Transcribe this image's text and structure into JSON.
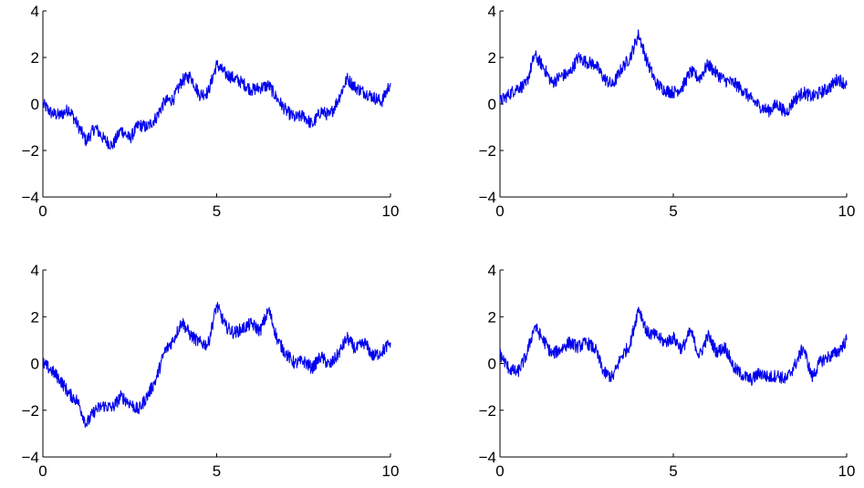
{
  "figure": {
    "line_color": "#0000ee",
    "axis_color": "#000000",
    "background": "#ffffff"
  },
  "chart_data": [
    {
      "type": "line",
      "panel": "top-left",
      "title": "",
      "xlabel": "",
      "ylabel": "",
      "xlim": [
        0,
        10
      ],
      "ylim": [
        -4,
        4
      ],
      "xticks": [
        0,
        5,
        10
      ],
      "xtick_labels": [
        "0",
        "5",
        "10"
      ],
      "yticks": [
        -4,
        -2,
        0,
        2,
        4
      ],
      "ytick_labels": [
        "−4",
        "−2",
        "0",
        "2",
        "4"
      ],
      "grid": false,
      "legend": "none",
      "series": [
        {
          "x": [
            0,
            0.25,
            0.5,
            0.75,
            1,
            1.25,
            1.5,
            1.75,
            2,
            2.25,
            2.5,
            2.75,
            3,
            3.25,
            3.5,
            3.75,
            4,
            4.25,
            4.5,
            4.75,
            5,
            5.25,
            5.5,
            5.75,
            6,
            6.25,
            6.5,
            6.75,
            7,
            7.25,
            7.5,
            7.75,
            8,
            8.25,
            8.5,
            8.75,
            9,
            9.25,
            9.5,
            9.75,
            10
          ],
          "y": [
            0.0,
            -0.4,
            -0.5,
            -0.2,
            -0.9,
            -1.6,
            -1.0,
            -1.5,
            -1.8,
            -1.1,
            -1.5,
            -0.9,
            -1.0,
            -0.6,
            0.1,
            0.2,
            1.0,
            1.2,
            0.4,
            0.5,
            1.7,
            1.3,
            1.1,
            0.9,
            0.6,
            0.7,
            0.8,
            0.2,
            -0.3,
            -0.6,
            -0.5,
            -0.9,
            -0.3,
            -0.5,
            0.2,
            1.1,
            0.7,
            0.5,
            0.3,
            0.1,
            0.9
          ]
        }
      ]
    },
    {
      "type": "line",
      "panel": "top-right",
      "title": "",
      "xlabel": "",
      "ylabel": "",
      "xlim": [
        0,
        10
      ],
      "ylim": [
        -4,
        4
      ],
      "xticks": [
        0,
        5,
        10
      ],
      "xtick_labels": [
        "0",
        "5",
        "10"
      ],
      "yticks": [
        -4,
        -2,
        0,
        2,
        4
      ],
      "ytick_labels": [
        "−4",
        "−2",
        "0",
        "2",
        "4"
      ],
      "grid": false,
      "legend": "none",
      "series": [
        {
          "x": [
            0,
            0.25,
            0.5,
            0.75,
            1,
            1.25,
            1.5,
            1.75,
            2,
            2.25,
            2.5,
            2.75,
            3,
            3.25,
            3.5,
            3.75,
            4,
            4.25,
            4.5,
            4.75,
            5,
            5.25,
            5.5,
            5.75,
            6,
            6.25,
            6.5,
            6.75,
            7,
            7.25,
            7.5,
            7.75,
            8,
            8.25,
            8.5,
            8.75,
            9,
            9.25,
            9.5,
            9.75,
            10
          ],
          "y": [
            0.1,
            0.4,
            0.7,
            0.8,
            2.1,
            1.6,
            0.9,
            1.2,
            1.3,
            2.0,
            1.8,
            1.7,
            1.1,
            0.8,
            1.5,
            2.0,
            3.0,
            1.8,
            0.9,
            0.6,
            0.5,
            0.7,
            1.4,
            1.1,
            1.7,
            1.3,
            1.0,
            0.9,
            0.6,
            0.2,
            -0.1,
            -0.3,
            0.0,
            -0.4,
            0.2,
            0.5,
            0.3,
            0.5,
            0.7,
            1.1,
            0.8
          ]
        }
      ]
    },
    {
      "type": "line",
      "panel": "bottom-left",
      "title": "",
      "xlabel": "",
      "ylabel": "",
      "xlim": [
        0,
        10
      ],
      "ylim": [
        -4,
        4
      ],
      "xticks": [
        0,
        5,
        10
      ],
      "xtick_labels": [
        "0",
        "5",
        "10"
      ],
      "yticks": [
        -4,
        -2,
        0,
        2,
        4
      ],
      "ytick_labels": [
        "−4",
        "−2",
        "0",
        "2",
        "4"
      ],
      "grid": false,
      "legend": "none",
      "series": [
        {
          "x": [
            0,
            0.25,
            0.5,
            0.75,
            1,
            1.25,
            1.5,
            1.75,
            2,
            2.25,
            2.5,
            2.75,
            3,
            3.25,
            3.5,
            3.75,
            4,
            4.25,
            4.5,
            4.75,
            5,
            5.25,
            5.5,
            5.75,
            6,
            6.25,
            6.5,
            6.75,
            7,
            7.25,
            7.5,
            7.75,
            8,
            8.25,
            8.5,
            8.75,
            9,
            9.25,
            9.5,
            9.75,
            10
          ],
          "y": [
            0.0,
            -0.3,
            -0.7,
            -1.3,
            -1.6,
            -2.6,
            -2.0,
            -1.8,
            -1.9,
            -1.4,
            -1.7,
            -2.0,
            -1.4,
            -0.7,
            0.5,
            1.0,
            1.8,
            1.2,
            0.9,
            0.8,
            2.5,
            1.6,
            1.3,
            1.5,
            1.7,
            1.4,
            2.3,
            1.0,
            0.4,
            0.0,
            0.1,
            -0.2,
            0.3,
            -0.1,
            0.4,
            1.1,
            0.6,
            0.9,
            0.3,
            0.5,
            0.9
          ]
        }
      ]
    },
    {
      "type": "line",
      "panel": "bottom-right",
      "title": "",
      "xlabel": "",
      "ylabel": "",
      "xlim": [
        0,
        10
      ],
      "ylim": [
        -4,
        4
      ],
      "xticks": [
        0,
        5,
        10
      ],
      "xtick_labels": [
        "0",
        "5",
        "10"
      ],
      "yticks": [
        -4,
        -2,
        0,
        2,
        4
      ],
      "ytick_labels": [
        "−4",
        "−2",
        "0",
        "2",
        "4"
      ],
      "grid": false,
      "legend": "none",
      "series": [
        {
          "x": [
            0,
            0.25,
            0.5,
            0.75,
            1,
            1.25,
            1.5,
            1.75,
            2,
            2.25,
            2.5,
            2.75,
            3,
            3.25,
            3.5,
            3.75,
            4,
            4.25,
            4.5,
            4.75,
            5,
            5.25,
            5.5,
            5.75,
            6,
            6.25,
            6.5,
            6.75,
            7,
            7.25,
            7.5,
            7.75,
            8,
            8.25,
            8.5,
            8.75,
            9,
            9.25,
            9.5,
            9.75,
            10
          ],
          "y": [
            0.4,
            -0.2,
            -0.4,
            0.3,
            1.6,
            1.0,
            0.4,
            0.6,
            0.9,
            0.7,
            0.9,
            0.6,
            -0.4,
            -0.6,
            0.3,
            0.8,
            2.4,
            1.3,
            1.2,
            0.9,
            1.1,
            0.6,
            1.4,
            0.3,
            1.2,
            0.5,
            0.7,
            -0.2,
            -0.5,
            -0.7,
            -0.4,
            -0.6,
            -0.5,
            -0.7,
            -0.1,
            0.7,
            -0.6,
            0.1,
            0.3,
            0.5,
            1.0
          ]
        }
      ]
    }
  ]
}
